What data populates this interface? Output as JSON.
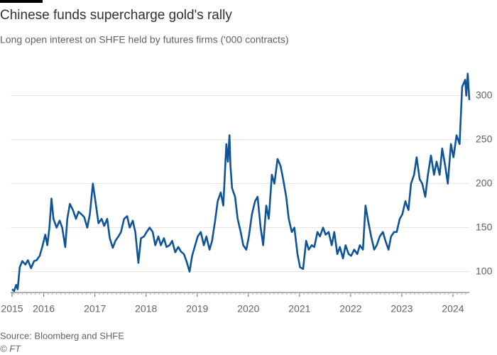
{
  "chart_data": {
    "type": "line",
    "title": "Chinese funds supercharge gold's rally",
    "subtitle": "Long open interest on SHFE held by futures firms ('000 contracts)",
    "source": "Source: Bloomberg and SHFE",
    "credit": "© FT",
    "color": "#0f5499",
    "grid": true,
    "x": [
      2015.38,
      2015.42,
      2015.46,
      2015.49,
      2015.53,
      2015.58,
      2015.64,
      2015.69,
      2015.75,
      2015.81,
      2015.86,
      2015.92,
      2015.97,
      2016.03,
      2016.07,
      2016.11,
      2016.15,
      2016.19,
      2016.25,
      2016.31,
      2016.36,
      2016.42,
      2016.46,
      2016.51,
      2016.57,
      2016.63,
      2016.68,
      2016.74,
      2016.79,
      2016.85,
      2016.9,
      2016.96,
      2017.01,
      2017.07,
      2017.13,
      2017.18,
      2017.24,
      2017.29,
      2017.35,
      2017.4,
      2017.46,
      2017.51,
      2017.57,
      2017.63,
      2017.68,
      2017.74,
      2017.79,
      2017.85,
      2017.9,
      2017.96,
      2018.01,
      2018.07,
      2018.13,
      2018.18,
      2018.24,
      2018.29,
      2018.35,
      2018.4,
      2018.46,
      2018.51,
      2018.57,
      2018.63,
      2018.68,
      2018.74,
      2018.79,
      2018.85,
      2018.9,
      2018.96,
      2019.01,
      2019.07,
      2019.13,
      2019.18,
      2019.24,
      2019.29,
      2019.35,
      2019.4,
      2019.46,
      2019.51,
      2019.57,
      2019.6,
      2019.63,
      2019.65,
      2019.68,
      2019.74,
      2019.79,
      2019.85,
      2019.9,
      2019.96,
      2020.01,
      2020.07,
      2020.13,
      2020.18,
      2020.24,
      2020.29,
      2020.35,
      2020.4,
      2020.46,
      2020.51,
      2020.57,
      2020.63,
      2020.68,
      2020.74,
      2020.79,
      2020.85,
      2020.9,
      2020.96,
      2021.01,
      2021.07,
      2021.13,
      2021.18,
      2021.24,
      2021.29,
      2021.35,
      2021.4,
      2021.46,
      2021.51,
      2021.57,
      2021.63,
      2021.68,
      2021.74,
      2021.79,
      2021.85,
      2021.9,
      2021.96,
      2022.01,
      2022.07,
      2022.13,
      2022.18,
      2022.24,
      2022.29,
      2022.35,
      2022.4,
      2022.46,
      2022.51,
      2022.57,
      2022.63,
      2022.68,
      2022.74,
      2022.79,
      2022.85,
      2022.9,
      2022.96,
      2023.01,
      2023.07,
      2023.13,
      2023.18,
      2023.24,
      2023.29,
      2023.35,
      2023.4,
      2023.46,
      2023.51,
      2023.57,
      2023.63,
      2023.68,
      2023.74,
      2023.79,
      2023.85,
      2023.9,
      2023.96,
      2024.01,
      2024.07,
      2024.13,
      2024.18,
      2024.24,
      2024.26,
      2024.29,
      2024.32
    ],
    "values": [
      80,
      78,
      85,
      80,
      105,
      112,
      108,
      113,
      104,
      112,
      113,
      118,
      128,
      142,
      130,
      150,
      183,
      160,
      150,
      158,
      150,
      128,
      160,
      177,
      170,
      160,
      168,
      165,
      162,
      150,
      165,
      200,
      180,
      155,
      160,
      152,
      160,
      138,
      127,
      135,
      140,
      145,
      160,
      163,
      150,
      158,
      145,
      110,
      138,
      140,
      145,
      150,
      145,
      130,
      140,
      130,
      138,
      128,
      130,
      135,
      122,
      128,
      123,
      120,
      112,
      100,
      118,
      130,
      140,
      145,
      130,
      140,
      125,
      135,
      158,
      180,
      190,
      175,
      245,
      225,
      255,
      220,
      195,
      185,
      160,
      145,
      130,
      125,
      140,
      165,
      180,
      185,
      150,
      130,
      175,
      160,
      210,
      200,
      228,
      220,
      205,
      185,
      160,
      145,
      150,
      120,
      105,
      103,
      135,
      125,
      130,
      128,
      145,
      140,
      150,
      142,
      145,
      130,
      145,
      120,
      128,
      115,
      130,
      120,
      118,
      125,
      120,
      130,
      125,
      175,
      155,
      140,
      125,
      130,
      140,
      145,
      135,
      125,
      140,
      145,
      145,
      160,
      165,
      180,
      170,
      200,
      210,
      230,
      205,
      200,
      185,
      210,
      232,
      210,
      225,
      210,
      240,
      220,
      200,
      245,
      230,
      255,
      245,
      310,
      318,
      300,
      325,
      295
    ],
    "xlim": [
      2015.38,
      2024.32
    ],
    "xticks": [
      {
        "value": 2015.38,
        "label": "2015"
      },
      2016,
      2017,
      2018,
      2019,
      2020,
      2021,
      2022,
      2023,
      2024
    ],
    "ylim": [
      76.3,
      332
    ],
    "yticks": [
      100,
      150,
      200,
      250,
      300
    ]
  }
}
